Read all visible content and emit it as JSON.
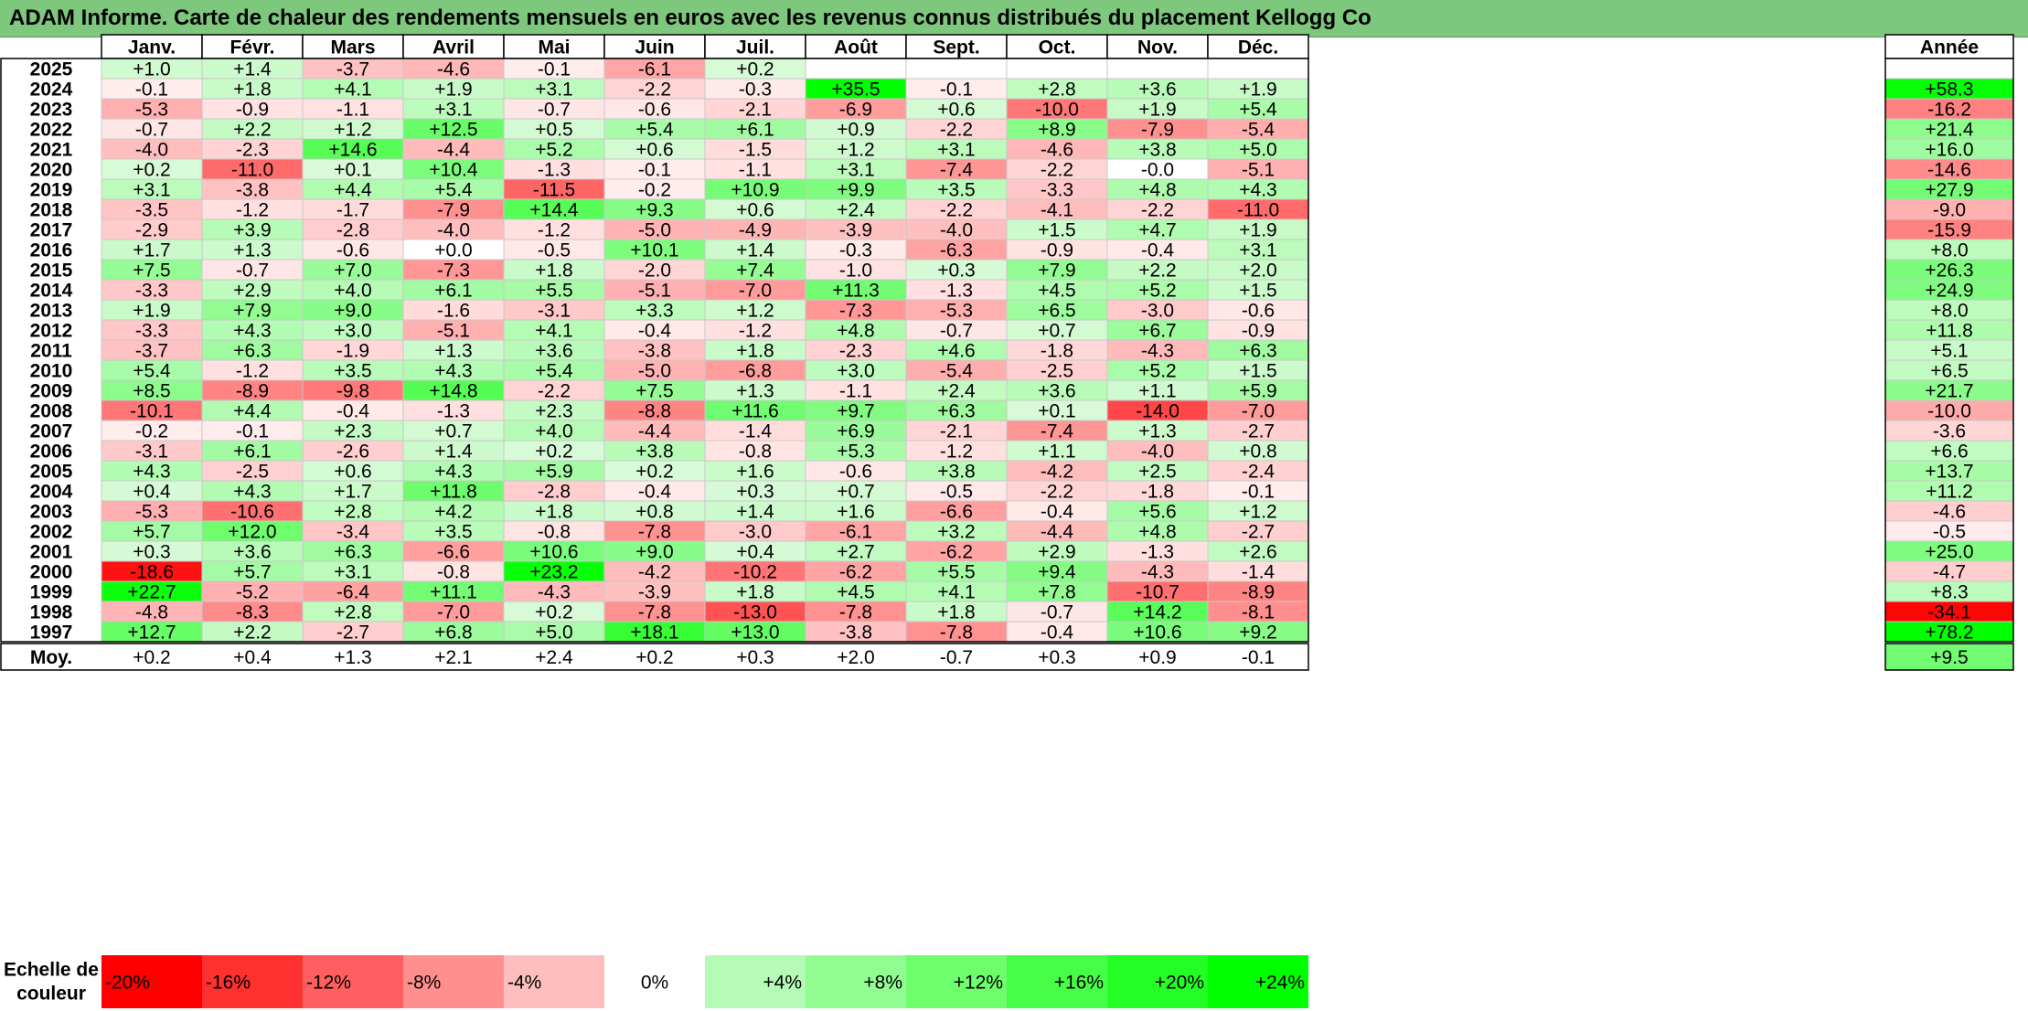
{
  "title": "ADAM Informe. Carte de chaleur des rendements mensuels en euros avec les revenus connus distribués du placement Kellogg Co",
  "chart_data": {
    "type": "heatmap",
    "months": [
      "Janv.",
      "Févr.",
      "Mars",
      "Avril",
      "Mai",
      "Juin",
      "Juil.",
      "Août",
      "Sept.",
      "Oct.",
      "Nov.",
      "Déc."
    ],
    "year_header": "Année",
    "rows": [
      {
        "year": "2025",
        "values": [
          1.0,
          1.4,
          -3.7,
          -4.6,
          -0.1,
          -6.1,
          0.2,
          null,
          null,
          null,
          null,
          null
        ],
        "annual": null
      },
      {
        "year": "2024",
        "values": [
          -0.1,
          1.8,
          4.1,
          1.9,
          3.1,
          -2.2,
          -0.3,
          35.5,
          -0.1,
          2.8,
          3.6,
          1.9
        ],
        "annual": 58.3
      },
      {
        "year": "2023",
        "values": [
          -5.3,
          -0.9,
          -1.1,
          3.1,
          -0.7,
          -0.6,
          -2.1,
          -6.9,
          0.6,
          -10.0,
          1.9,
          5.4
        ],
        "annual": -16.2
      },
      {
        "year": "2022",
        "values": [
          -0.7,
          2.2,
          1.2,
          12.5,
          0.5,
          5.4,
          6.1,
          0.9,
          -2.2,
          8.9,
          -7.9,
          -5.4
        ],
        "annual": 21.4
      },
      {
        "year": "2021",
        "values": [
          -4.0,
          -2.3,
          14.6,
          -4.4,
          5.2,
          0.6,
          -1.5,
          1.2,
          3.1,
          -4.6,
          3.8,
          5.0
        ],
        "annual": 16.0
      },
      {
        "year": "2020",
        "values": [
          0.2,
          -11.0,
          0.1,
          10.4,
          -1.3,
          -0.1,
          -1.1,
          3.1,
          -7.4,
          -2.2,
          -0.0,
          -5.1
        ],
        "annual": -14.6
      },
      {
        "year": "2019",
        "values": [
          3.1,
          -3.8,
          4.4,
          5.4,
          -11.5,
          -0.2,
          10.9,
          9.9,
          3.5,
          -3.3,
          4.8,
          4.3
        ],
        "annual": 27.9
      },
      {
        "year": "2018",
        "values": [
          -3.5,
          -1.2,
          -1.7,
          -7.9,
          14.4,
          9.3,
          0.6,
          2.4,
          -2.2,
          -4.1,
          -2.2,
          -11.0
        ],
        "annual": -9.0
      },
      {
        "year": "2017",
        "values": [
          -2.9,
          3.9,
          -2.8,
          -4.0,
          -1.2,
          -5.0,
          -4.9,
          -3.9,
          -4.0,
          1.5,
          4.7,
          1.9
        ],
        "annual": -15.9
      },
      {
        "year": "2016",
        "values": [
          1.7,
          1.3,
          -0.6,
          0.0,
          -0.5,
          10.1,
          1.4,
          -0.3,
          -6.3,
          -0.9,
          -0.4,
          3.1
        ],
        "annual": 8.0
      },
      {
        "year": "2015",
        "values": [
          7.5,
          -0.7,
          7.0,
          -7.3,
          1.8,
          -2.0,
          7.4,
          -1.0,
          0.3,
          7.9,
          2.2,
          2.0
        ],
        "annual": 26.3
      },
      {
        "year": "2014",
        "values": [
          -3.3,
          2.9,
          4.0,
          6.1,
          5.5,
          -5.1,
          -7.0,
          11.3,
          -1.3,
          4.5,
          5.2,
          1.5
        ],
        "annual": 24.9
      },
      {
        "year": "2013",
        "values": [
          1.9,
          7.9,
          9.0,
          -1.6,
          -3.1,
          3.3,
          1.2,
          -7.3,
          -5.3,
          6.5,
          -3.0,
          -0.6
        ],
        "annual": 8.0
      },
      {
        "year": "2012",
        "values": [
          -3.3,
          4.3,
          3.0,
          -5.1,
          4.1,
          -0.4,
          -1.2,
          4.8,
          -0.7,
          0.7,
          6.7,
          -0.9
        ],
        "annual": 11.8
      },
      {
        "year": "2011",
        "values": [
          -3.7,
          6.3,
          -1.9,
          1.3,
          3.6,
          -3.8,
          1.8,
          -2.3,
          4.6,
          -1.8,
          -4.3,
          6.3
        ],
        "annual": 5.1
      },
      {
        "year": "2010",
        "values": [
          5.4,
          -1.2,
          3.5,
          4.3,
          5.4,
          -5.0,
          -6.8,
          3.0,
          -5.4,
          -2.5,
          5.2,
          1.5
        ],
        "annual": 6.5
      },
      {
        "year": "2009",
        "values": [
          8.5,
          -8.9,
          -9.8,
          14.8,
          -2.2,
          7.5,
          1.3,
          -1.1,
          2.4,
          3.6,
          1.1,
          5.9
        ],
        "annual": 21.7
      },
      {
        "year": "2008",
        "values": [
          -10.1,
          4.4,
          -0.4,
          -1.3,
          2.3,
          -8.8,
          11.6,
          9.7,
          6.3,
          0.1,
          -14.0,
          -7.0
        ],
        "annual": -10.0
      },
      {
        "year": "2007",
        "values": [
          -0.2,
          -0.1,
          2.3,
          0.7,
          4.0,
          -4.4,
          -1.4,
          6.9,
          -2.1,
          -7.4,
          1.3,
          -2.7
        ],
        "annual": -3.6
      },
      {
        "year": "2006",
        "values": [
          -3.1,
          6.1,
          -2.6,
          1.4,
          0.2,
          3.8,
          -0.8,
          5.3,
          -1.2,
          1.1,
          -4.0,
          0.8
        ],
        "annual": 6.6
      },
      {
        "year": "2005",
        "values": [
          4.3,
          -2.5,
          0.6,
          4.3,
          5.9,
          0.2,
          1.6,
          -0.6,
          3.8,
          -4.2,
          2.5,
          -2.4
        ],
        "annual": 13.7
      },
      {
        "year": "2004",
        "values": [
          0.4,
          4.3,
          1.7,
          11.8,
          -2.8,
          -0.4,
          0.3,
          0.7,
          -0.5,
          -2.2,
          -1.8,
          -0.1
        ],
        "annual": 11.2
      },
      {
        "year": "2003",
        "values": [
          -5.3,
          -10.6,
          2.8,
          4.2,
          1.8,
          0.8,
          1.4,
          1.6,
          -6.6,
          -0.4,
          5.6,
          1.2
        ],
        "annual": -4.6
      },
      {
        "year": "2002",
        "values": [
          5.7,
          12.0,
          -3.4,
          3.5,
          -0.8,
          -7.8,
          -3.0,
          -6.1,
          3.2,
          -4.4,
          4.8,
          -2.7
        ],
        "annual": -0.5
      },
      {
        "year": "2001",
        "values": [
          0.3,
          3.6,
          6.3,
          -6.6,
          10.6,
          9.0,
          0.4,
          2.7,
          -6.2,
          2.9,
          -1.3,
          2.6
        ],
        "annual": 25.0
      },
      {
        "year": "2000",
        "values": [
          -18.6,
          5.7,
          3.1,
          -0.8,
          23.2,
          -4.2,
          -10.2,
          -6.2,
          5.5,
          9.4,
          -4.3,
          -1.4
        ],
        "annual": -4.7
      },
      {
        "year": "1999",
        "values": [
          22.7,
          -5.2,
          -6.4,
          11.1,
          -4.3,
          -3.9,
          1.8,
          4.5,
          4.1,
          7.8,
          -10.7,
          -8.9
        ],
        "annual": 8.3
      },
      {
        "year": "1998",
        "values": [
          -4.8,
          -8.3,
          2.8,
          -7.0,
          0.2,
          -7.8,
          -13.0,
          -7.8,
          1.8,
          -0.7,
          14.2,
          -8.1
        ],
        "annual": -34.1
      },
      {
        "year": "1997",
        "values": [
          12.7,
          2.2,
          -2.7,
          6.8,
          5.0,
          18.1,
          13.0,
          -3.8,
          -7.8,
          -0.4,
          10.6,
          9.2
        ],
        "annual": 78.2
      }
    ],
    "average": {
      "label": "Moy.",
      "values": [
        0.2,
        0.4,
        1.3,
        2.1,
        2.4,
        0.2,
        0.3,
        2.0,
        -0.7,
        0.3,
        0.9,
        -0.1
      ],
      "annual": 9.5
    },
    "scale": {
      "label_lines": [
        "Echelle de",
        "couleur"
      ],
      "stops": [
        "-20%",
        "-16%",
        "-12%",
        "-8%",
        "-4%",
        "0%",
        "+4%",
        "+8%",
        "+12%",
        "+16%",
        "+20%",
        "+24%"
      ]
    }
  }
}
